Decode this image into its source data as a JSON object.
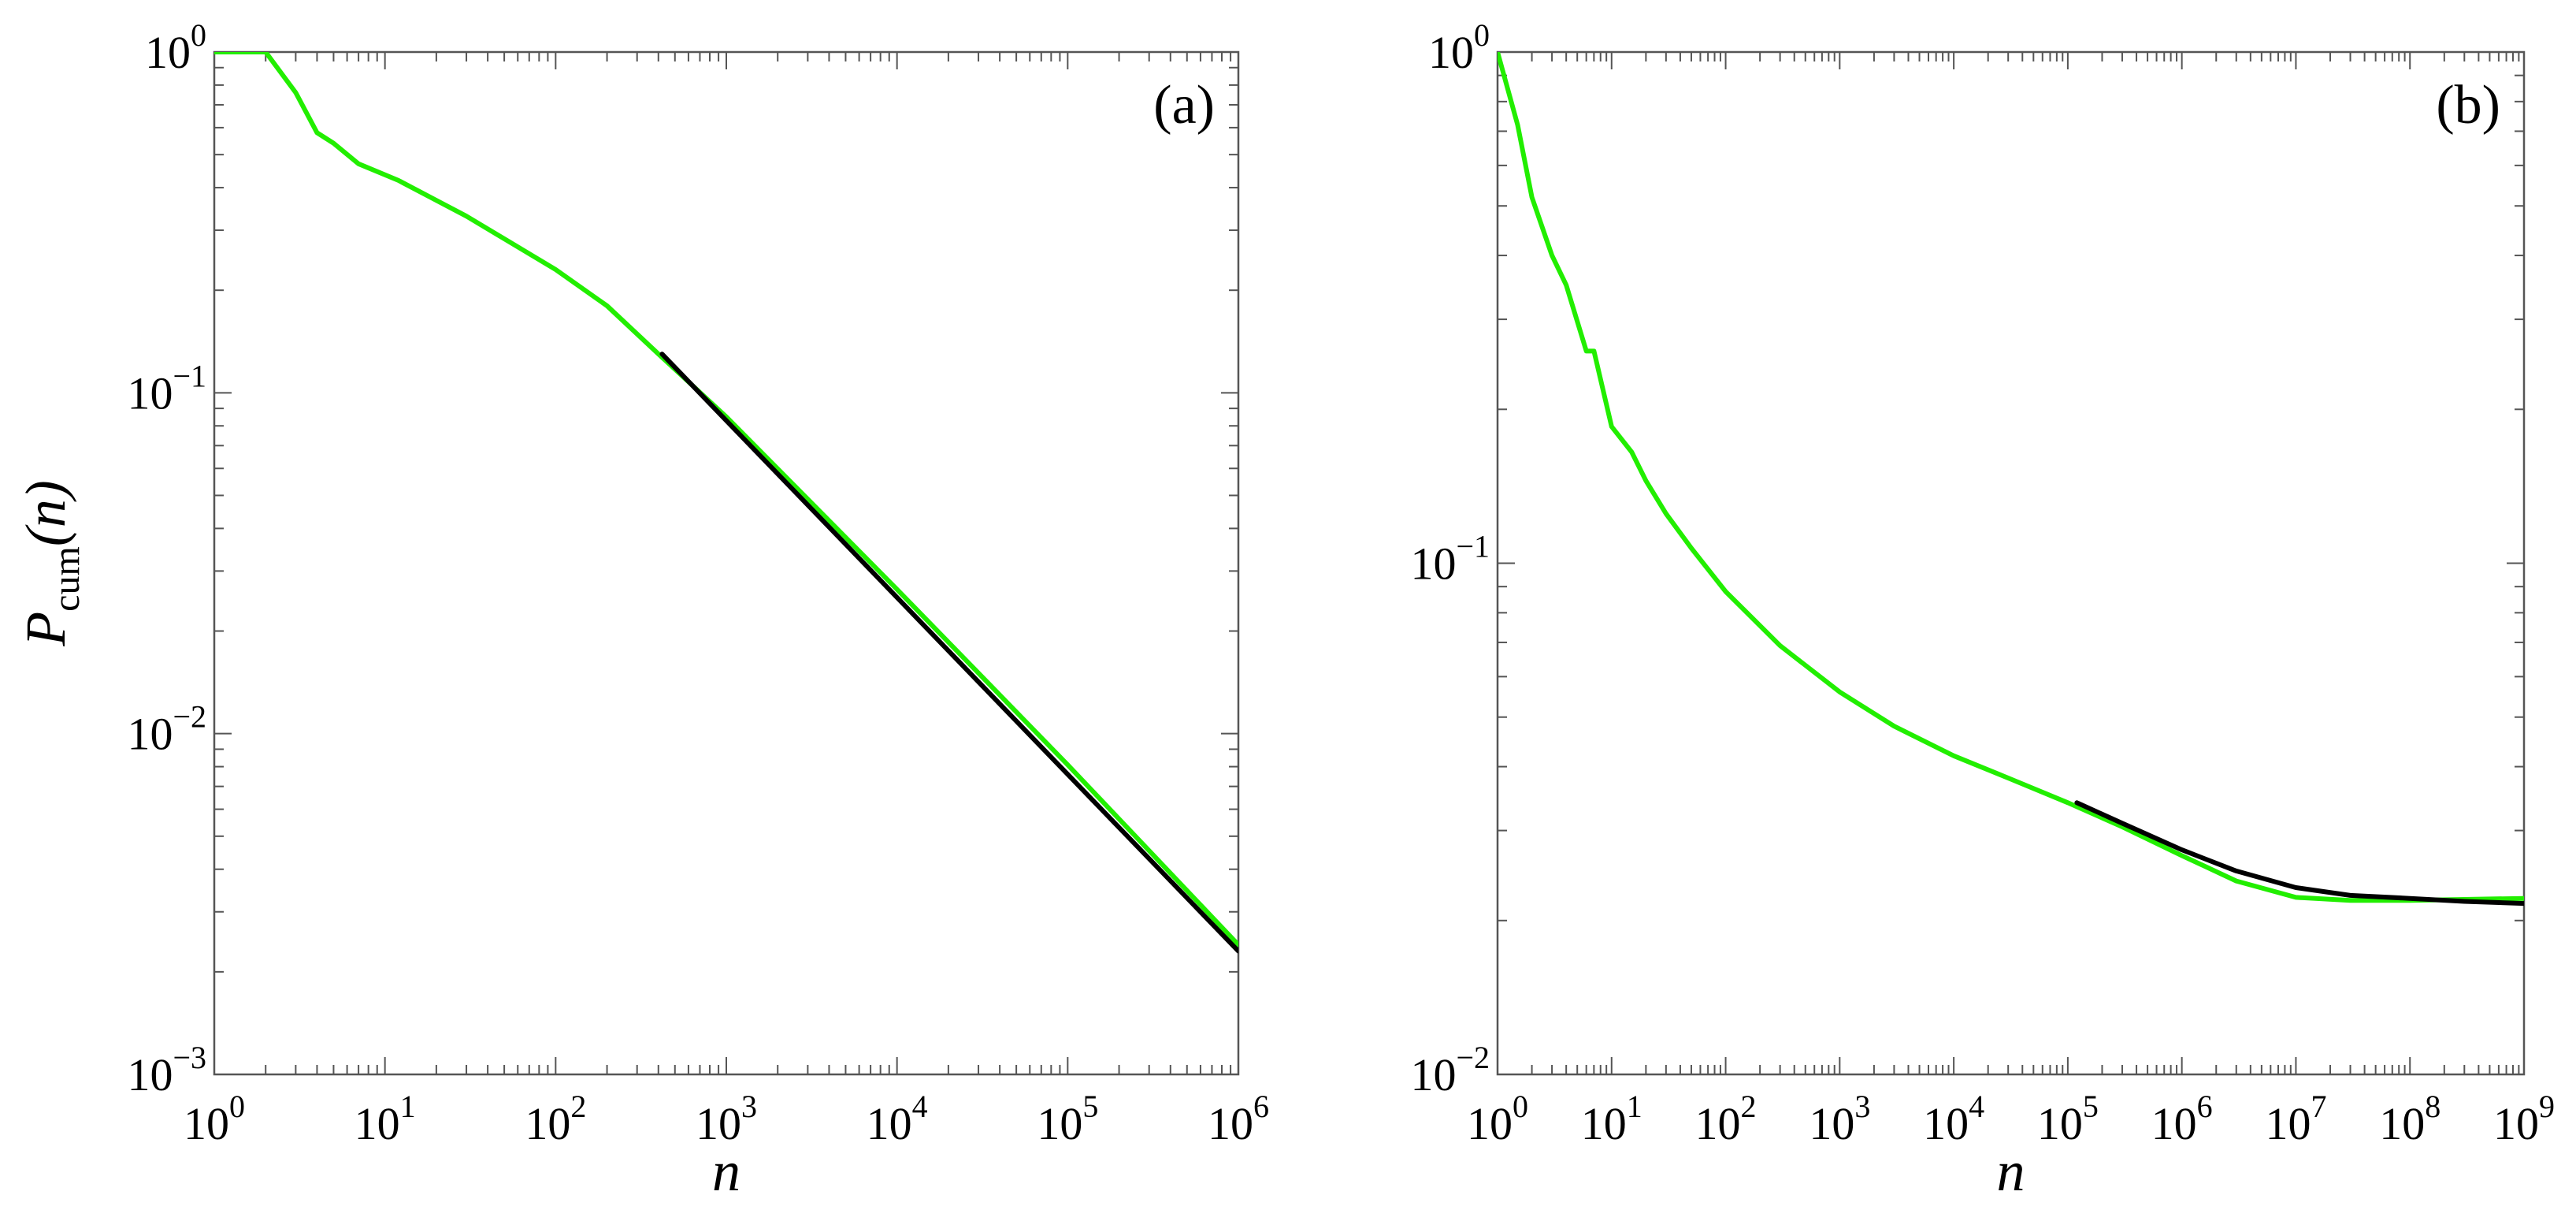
{
  "chart_data": [
    {
      "type": "line",
      "panel_label": "(a)",
      "xlabel": "n",
      "ylabel": {
        "main": "P",
        "subscript": "cum",
        "suffix": "(n)"
      },
      "xscale": "log",
      "yscale": "log",
      "xlim": [
        1,
        1000000
      ],
      "ylim": [
        0.001,
        1
      ],
      "x_ticks": [
        {
          "base": "10",
          "exp": "0"
        },
        {
          "base": "10",
          "exp": "1"
        },
        {
          "base": "10",
          "exp": "2"
        },
        {
          "base": "10",
          "exp": "3"
        },
        {
          "base": "10",
          "exp": "4"
        },
        {
          "base": "10",
          "exp": "5"
        },
        {
          "base": "10",
          "exp": "6"
        }
      ],
      "y_ticks": [
        {
          "base": "10",
          "exp": "0"
        },
        {
          "base": "10",
          "exp": "−1"
        },
        {
          "base": "10",
          "exp": "−2"
        },
        {
          "base": "10",
          "exp": "−3"
        }
      ],
      "grid": false,
      "series": [
        {
          "color": "#22ee00",
          "points": [
            [
              1,
              1
            ],
            [
              2,
              1
            ],
            [
              3,
              0.76
            ],
            [
              4,
              0.58
            ],
            [
              5,
              0.54
            ],
            [
              7,
              0.47
            ],
            [
              12,
              0.42
            ],
            [
              30,
              0.33
            ],
            [
              100,
              0.23
            ],
            [
              200,
              0.18
            ],
            [
              400,
              0.13
            ],
            [
              1000,
              0.085
            ],
            [
              10000,
              0.0265
            ],
            [
              100000,
              0.0081
            ],
            [
              1000000,
              0.0024
            ]
          ]
        },
        {
          "color": "#000000",
          "points": [
            [
              420,
              0.13
            ],
            [
              1000000,
              0.0023
            ]
          ]
        }
      ]
    },
    {
      "type": "line",
      "panel_label": "(b)",
      "xlabel": "n",
      "ylabel": null,
      "xscale": "log",
      "yscale": "log",
      "xlim": [
        1,
        1000000000
      ],
      "ylim": [
        0.01,
        1
      ],
      "x_ticks": [
        {
          "base": "10",
          "exp": "0"
        },
        {
          "base": "10",
          "exp": "1"
        },
        {
          "base": "10",
          "exp": "2"
        },
        {
          "base": "10",
          "exp": "3"
        },
        {
          "base": "10",
          "exp": "4"
        },
        {
          "base": "10",
          "exp": "5"
        },
        {
          "base": "10",
          "exp": "6"
        },
        {
          "base": "10",
          "exp": "7"
        },
        {
          "base": "10",
          "exp": "8"
        },
        {
          "base": "10",
          "exp": "9"
        }
      ],
      "y_ticks": [
        {
          "base": "10",
          "exp": "0"
        },
        {
          "base": "10",
          "exp": "−1"
        },
        {
          "base": "10",
          "exp": "−2"
        }
      ],
      "grid": false,
      "series": [
        {
          "color": "#22ee00",
          "points": [
            [
              1,
              1
            ],
            [
              1.5,
              0.72
            ],
            [
              2,
              0.52
            ],
            [
              3,
              0.4
            ],
            [
              4,
              0.35
            ],
            [
              6,
              0.26
            ],
            [
              7,
              0.26
            ],
            [
              10,
              0.185
            ],
            [
              15,
              0.165
            ],
            [
              20,
              0.145
            ],
            [
              30,
              0.125
            ],
            [
              50,
              0.107
            ],
            [
              100,
              0.088
            ],
            [
              300,
              0.069
            ],
            [
              1000,
              0.056
            ],
            [
              3000,
              0.048
            ],
            [
              10000,
              0.042
            ],
            [
              30000,
              0.038
            ],
            [
              100000,
              0.034
            ],
            [
              300000,
              0.0305
            ],
            [
              1000000,
              0.0268
            ],
            [
              3000000,
              0.0239
            ],
            [
              10000000,
              0.0222
            ],
            [
              30000000,
              0.0219
            ],
            [
              100000000,
              0.0219
            ],
            [
              1000000000,
              0.0221
            ]
          ]
        },
        {
          "color": "#000000",
          "points": [
            [
              120000,
              0.034
            ],
            [
              300000,
              0.031
            ],
            [
              1000000,
              0.0275
            ],
            [
              3000000,
              0.025
            ],
            [
              10000000,
              0.0232
            ],
            [
              30000000,
              0.0224
            ],
            [
              100000000,
              0.0221
            ],
            [
              300000000,
              0.0218
            ],
            [
              1000000000,
              0.0216
            ]
          ]
        }
      ]
    }
  ]
}
